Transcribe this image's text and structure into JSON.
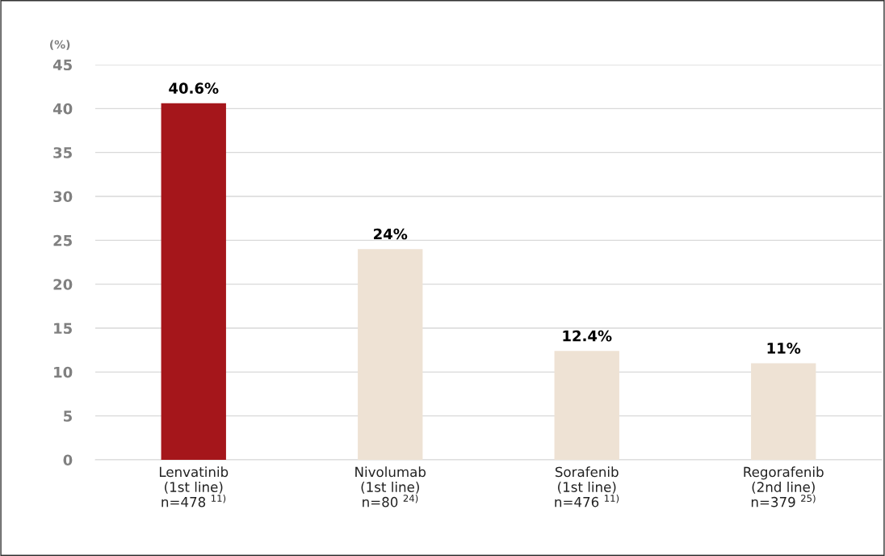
{
  "chart_data": {
    "type": "bar",
    "ylabel": "(%)",
    "categories": [
      "Lenvatinib\n(1st line)\nn=478 $^{11)}$",
      "Nivolumab\n(1st line)\nn=80 $^{24)}$",
      "Sorafenib\n(1st line)\nn=476 $^{11)}$",
      "Regorafenib\n(2nd line)\nn=379 $^{25)}$"
    ],
    "values": [
      40.6,
      24,
      12.4,
      11
    ],
    "colors": [
      "#a5161b",
      "#eee2d4",
      "#eee2d4",
      "#eee2d4"
    ],
    "value_labels": [
      "40.6%",
      "24%",
      "12.4%",
      "11%"
    ],
    "ylim": [
      0,
      45
    ],
    "yticks": [
      0,
      5,
      10,
      15,
      20,
      25,
      30,
      35,
      40,
      45
    ],
    "grid": "y"
  }
}
